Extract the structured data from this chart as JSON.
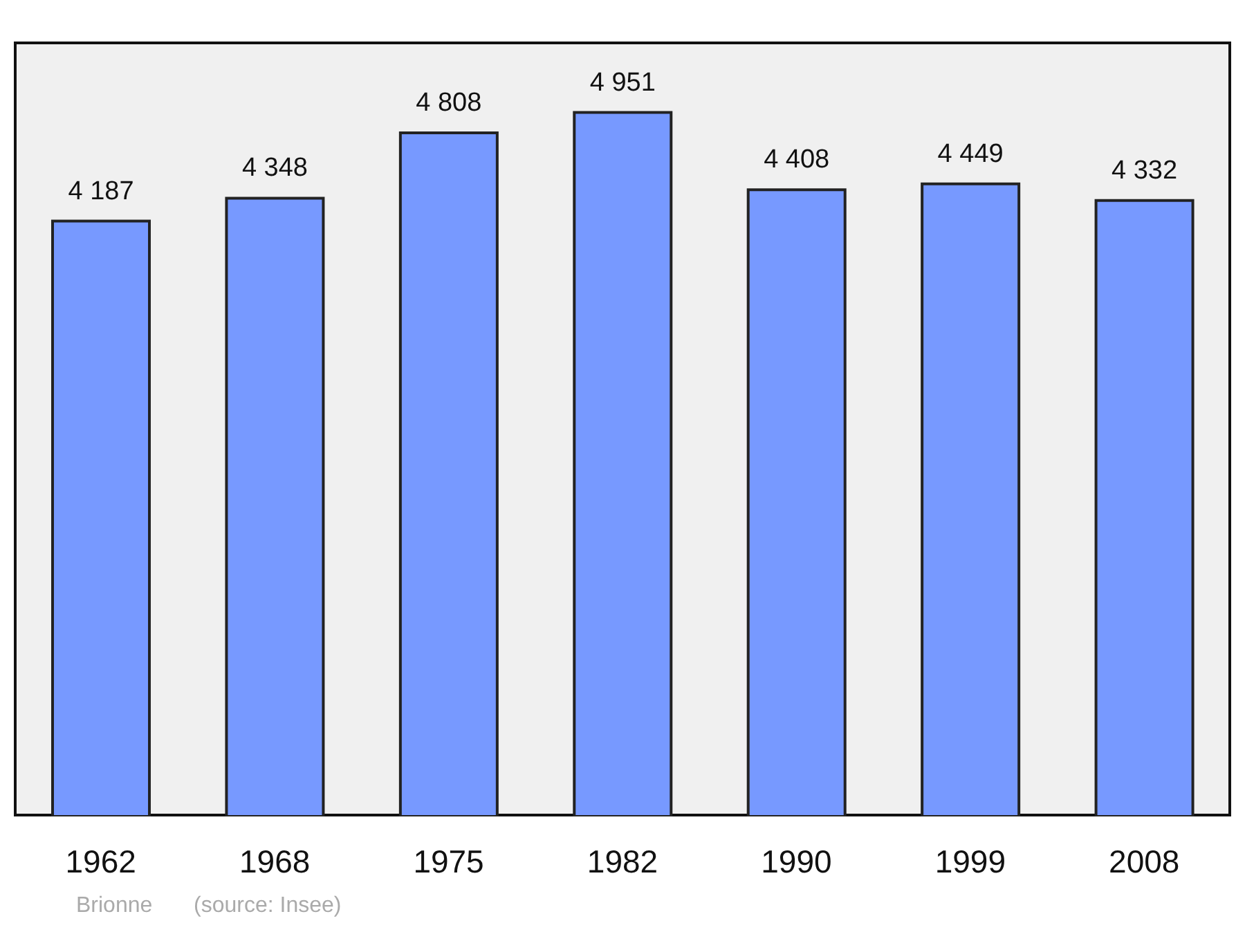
{
  "chart_data": {
    "type": "bar",
    "categories": [
      "1962",
      "1968",
      "1975",
      "1982",
      "1990",
      "1999",
      "2008"
    ],
    "values": [
      4187,
      4348,
      4808,
      4951,
      4408,
      4449,
      4332
    ],
    "value_labels": [
      "4 187",
      "4 348",
      "4 808",
      "4 951",
      "4 408",
      "4 449",
      "4 332"
    ],
    "color": "#7799ff",
    "ylim": [
      0,
      5450
    ],
    "tick_labels": "x",
    "grid": false,
    "annotations": [
      "Brionne",
      "(source: Insee)"
    ]
  }
}
